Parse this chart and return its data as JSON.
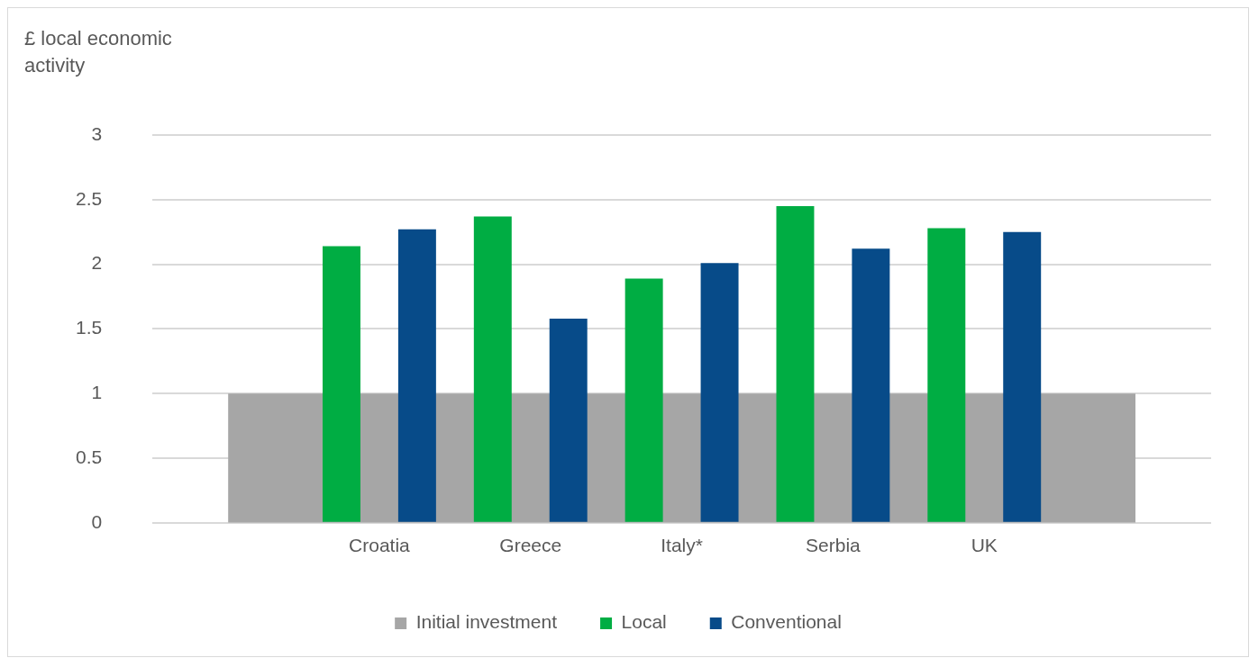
{
  "chart_data": {
    "type": "bar",
    "ylabel": "£ local economic activity",
    "categories": [
      null,
      "Croatia",
      "Greece",
      "Italy*",
      "Serbia",
      "UK",
      null
    ],
    "series": [
      {
        "name": "Initial investment",
        "type": "area",
        "color": "#a6a6a6",
        "values": [
          1,
          1,
          1,
          1,
          1,
          1,
          1
        ]
      },
      {
        "name": "Local",
        "color": "#00ad43",
        "values": [
          null,
          2.14,
          2.37,
          1.89,
          2.45,
          2.28,
          null
        ]
      },
      {
        "name": "Conventional",
        "color": "#074b89",
        "values": [
          null,
          2.27,
          1.58,
          2.01,
          2.12,
          2.25,
          null
        ]
      }
    ],
    "ylim": [
      0,
      3
    ],
    "yticks": [
      0,
      0.5,
      1,
      1.5,
      2,
      2.5,
      3
    ],
    "grid": "y",
    "legend": "bottom"
  }
}
